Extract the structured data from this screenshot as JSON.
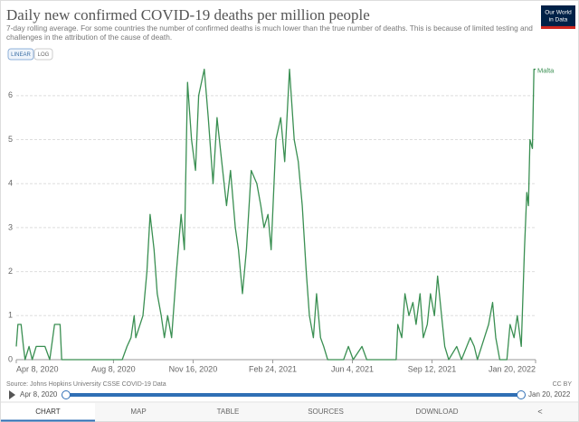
{
  "chart_data": {
    "type": "line",
    "title": "Daily new confirmed COVID-19 deaths per million people",
    "subtitle": [
      "7-day rolling average. For some countries the number of confirmed deaths is much lower than the true number of deaths. This is because of limited testing and",
      "challenges in the attribution of the cause of death."
    ],
    "x": [
      "2020-04-08",
      "2020-04-10",
      "2020-04-14",
      "2020-04-17",
      "2020-04-19",
      "2020-04-24",
      "2020-04-28",
      "2020-05-03",
      "2020-05-14",
      "2020-05-20",
      "2020-05-26",
      "2020-06-02",
      "2020-06-04",
      "2020-08-19",
      "2020-08-25",
      "2020-08-30",
      "2020-09-03",
      "2020-09-05",
      "2020-09-14",
      "2020-09-19",
      "2020-09-23",
      "2020-09-28",
      "2020-10-02",
      "2020-10-07",
      "2020-10-11",
      "2020-10-15",
      "2020-10-20",
      "2020-10-26",
      "2020-11-01",
      "2020-11-05",
      "2020-11-09",
      "2020-11-14",
      "2020-11-19",
      "2020-11-23",
      "2020-11-30",
      "2020-12-05",
      "2020-12-11",
      "2020-12-16",
      "2020-12-22",
      "2020-12-28",
      "2021-01-02",
      "2021-01-08",
      "2021-01-12",
      "2021-01-17",
      "2021-01-22",
      "2021-01-28",
      "2021-02-04",
      "2021-02-09",
      "2021-02-13",
      "2021-02-18",
      "2021-02-22",
      "2021-02-28",
      "2021-03-06",
      "2021-03-11",
      "2021-03-17",
      "2021-03-23",
      "2021-03-28",
      "2021-04-02",
      "2021-04-07",
      "2021-04-11",
      "2021-04-16",
      "2021-04-20",
      "2021-04-25",
      "2021-04-29",
      "2021-05-04",
      "2021-05-24",
      "2021-05-30",
      "2021-06-05",
      "2021-06-16",
      "2021-06-22",
      "2021-07-29",
      "2021-07-31",
      "2021-08-05",
      "2021-08-09",
      "2021-08-14",
      "2021-08-19",
      "2021-08-23",
      "2021-08-28",
      "2021-09-01",
      "2021-09-06",
      "2021-09-10",
      "2021-09-15",
      "2021-09-19",
      "2021-09-24",
      "2021-09-28",
      "2021-10-03",
      "2021-10-13",
      "2021-10-19",
      "2021-10-30",
      "2021-11-04",
      "2021-11-08",
      "2021-11-22",
      "2021-11-27",
      "2021-12-01",
      "2021-12-06",
      "2021-12-15",
      "2021-12-19",
      "2021-12-24",
      "2021-12-28",
      "2022-01-02",
      "2022-01-06",
      "2022-01-09",
      "2022-01-11",
      "2022-01-13",
      "2022-01-16",
      "2022-01-18",
      "2022-01-20"
    ],
    "series": [
      {
        "name": "Malta",
        "color": "#3a8f52",
        "values": [
          0.3,
          0.8,
          0.8,
          0.3,
          0,
          0.3,
          0,
          0.3,
          0.3,
          0,
          0.8,
          0.8,
          0,
          0,
          0.3,
          0.5,
          1,
          0.5,
          1,
          2,
          3.3,
          2.5,
          1.5,
          1,
          0.5,
          1,
          0.5,
          2,
          3.3,
          2.5,
          6.3,
          5,
          4.3,
          6,
          6.6,
          5.5,
          4,
          5.5,
          4.5,
          3.5,
          4.3,
          3,
          2.5,
          1.5,
          2.5,
          4.3,
          4,
          3.5,
          3,
          3.3,
          2.5,
          5,
          5.5,
          4.5,
          6.6,
          5,
          4.5,
          3.5,
          2,
          1,
          0.5,
          1.5,
          0.5,
          0.3,
          0,
          0,
          0.3,
          0,
          0.3,
          0,
          0,
          0.8,
          0.5,
          1.5,
          1,
          1.3,
          0.8,
          1.5,
          0.5,
          0.8,
          1.5,
          1,
          1.9,
          1,
          0.3,
          0,
          0.3,
          0,
          0.5,
          0.3,
          0,
          0.8,
          1.3,
          0.5,
          0,
          0,
          0.8,
          0.5,
          1,
          0.3,
          2.5,
          3.8,
          3.5,
          5,
          4.8,
          6.6,
          6.6
        ]
      }
    ],
    "xlim": [
      "2020-04-08",
      "2022-01-20"
    ],
    "xticks": [
      {
        "value": "2020-04-08",
        "label": "Apr 8, 2020"
      },
      {
        "value": "2020-08-08",
        "label": "Aug 8, 2020"
      },
      {
        "value": "2020-11-16",
        "label": "Nov 16, 2020"
      },
      {
        "value": "2021-02-24",
        "label": "Feb 24, 2021"
      },
      {
        "value": "2021-06-04",
        "label": "Jun 4, 2021"
      },
      {
        "value": "2021-09-12",
        "label": "Sep 12, 2021"
      },
      {
        "value": "2022-01-20",
        "label": "Jan 20, 2022"
      }
    ],
    "ylim": [
      0,
      6.6
    ],
    "yticks": [
      0,
      1,
      2,
      3,
      4,
      5,
      6
    ],
    "grid": true
  },
  "logo": [
    "Our World",
    "in Data"
  ],
  "scale_buttons": [
    "LINEAR",
    "LOG"
  ],
  "source": "Source: Johns Hopkins University CSSE COVID-19 Data",
  "license": "CC BY",
  "slider": {
    "start": "Apr 8, 2020",
    "end": "Jan 20, 2022"
  },
  "tabs": [
    "CHART",
    "MAP",
    "TABLE",
    "SOURCES",
    "DOWNLOAD"
  ]
}
